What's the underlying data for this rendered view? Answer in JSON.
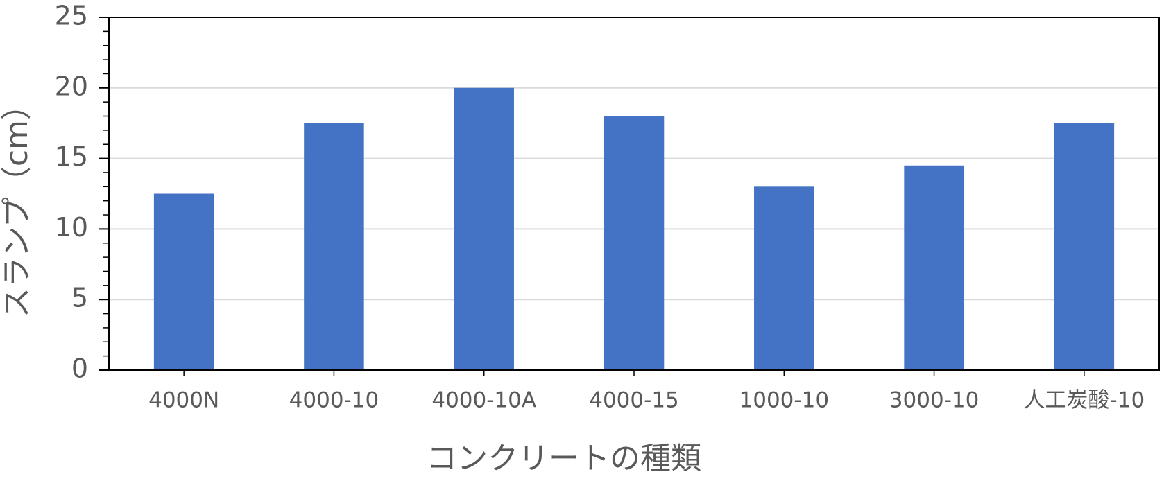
{
  "chart_data": {
    "type": "bar",
    "x_label": "コンクリートの種類",
    "y_label": "スランプ（cm）",
    "categories": [
      "4000N",
      "4000-10",
      "4000-10A",
      "4000-15",
      "1000-10",
      "3000-10",
      "人工炭酸-10"
    ],
    "values": [
      12.5,
      17.5,
      20,
      18,
      13,
      14.5,
      17.5
    ],
    "color": "#4472c4",
    "ylim": [
      0,
      25
    ],
    "yticks": [
      0,
      5,
      10,
      15,
      20,
      25
    ],
    "grid": true
  }
}
